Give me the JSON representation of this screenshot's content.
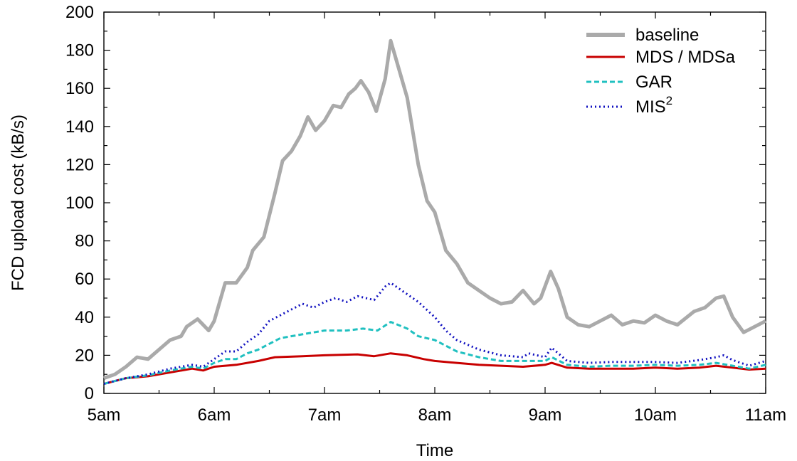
{
  "chart_data": {
    "type": "line",
    "title": "",
    "xlabel": "Time",
    "ylabel": "FCD upload cost (kB/s)",
    "xlim": [
      5,
      11
    ],
    "ylim": [
      0,
      200
    ],
    "x_ticks": [
      {
        "value": 5,
        "label": "5am"
      },
      {
        "value": 6,
        "label": "6am"
      },
      {
        "value": 7,
        "label": "7am"
      },
      {
        "value": 8,
        "label": "8am"
      },
      {
        "value": 9,
        "label": "9am"
      },
      {
        "value": 10,
        "label": "10am"
      },
      {
        "value": 11,
        "label": "11am"
      }
    ],
    "y_ticks": [
      0,
      20,
      40,
      60,
      80,
      100,
      120,
      140,
      160,
      180,
      200
    ],
    "grid": false,
    "legend": {
      "position": "top-right"
    },
    "series": [
      {
        "name": "baseline",
        "color": "#aaaaaa",
        "style": "solid",
        "points": [
          [
            5.0,
            8
          ],
          [
            5.1,
            10
          ],
          [
            5.2,
            14
          ],
          [
            5.3,
            19
          ],
          [
            5.4,
            18
          ],
          [
            5.5,
            23
          ],
          [
            5.6,
            28
          ],
          [
            5.7,
            30
          ],
          [
            5.75,
            35
          ],
          [
            5.85,
            39
          ],
          [
            5.95,
            33
          ],
          [
            6.0,
            38
          ],
          [
            6.1,
            58
          ],
          [
            6.2,
            58
          ],
          [
            6.3,
            66
          ],
          [
            6.35,
            75
          ],
          [
            6.45,
            82
          ],
          [
            6.55,
            105
          ],
          [
            6.62,
            122
          ],
          [
            6.7,
            127
          ],
          [
            6.78,
            135
          ],
          [
            6.85,
            145
          ],
          [
            6.92,
            138
          ],
          [
            7.0,
            143
          ],
          [
            7.08,
            151
          ],
          [
            7.15,
            150
          ],
          [
            7.22,
            157
          ],
          [
            7.28,
            160
          ],
          [
            7.33,
            164
          ],
          [
            7.4,
            158
          ],
          [
            7.47,
            148
          ],
          [
            7.55,
            165
          ],
          [
            7.6,
            185
          ],
          [
            7.65,
            175
          ],
          [
            7.75,
            155
          ],
          [
            7.85,
            120
          ],
          [
            7.93,
            101
          ],
          [
            8.0,
            95
          ],
          [
            8.1,
            75
          ],
          [
            8.2,
            68
          ],
          [
            8.3,
            58
          ],
          [
            8.4,
            54
          ],
          [
            8.5,
            50
          ],
          [
            8.6,
            47
          ],
          [
            8.7,
            48
          ],
          [
            8.8,
            54
          ],
          [
            8.9,
            47
          ],
          [
            8.96,
            50
          ],
          [
            9.05,
            64
          ],
          [
            9.12,
            55
          ],
          [
            9.2,
            40
          ],
          [
            9.3,
            36
          ],
          [
            9.4,
            35
          ],
          [
            9.5,
            38
          ],
          [
            9.6,
            41
          ],
          [
            9.7,
            36
          ],
          [
            9.8,
            38
          ],
          [
            9.9,
            37
          ],
          [
            10.0,
            41
          ],
          [
            10.1,
            38
          ],
          [
            10.2,
            36
          ],
          [
            10.35,
            43
          ],
          [
            10.45,
            45
          ],
          [
            10.55,
            50
          ],
          [
            10.62,
            51
          ],
          [
            10.7,
            40
          ],
          [
            10.8,
            32
          ],
          [
            10.9,
            35
          ],
          [
            11.0,
            38
          ]
        ]
      },
      {
        "name": "MDS / MDSa",
        "color": "#c80000",
        "style": "solid",
        "points": [
          [
            5.0,
            5
          ],
          [
            5.2,
            8
          ],
          [
            5.4,
            9
          ],
          [
            5.6,
            11
          ],
          [
            5.8,
            13
          ],
          [
            5.9,
            12
          ],
          [
            6.0,
            14
          ],
          [
            6.2,
            15
          ],
          [
            6.4,
            17
          ],
          [
            6.55,
            19
          ],
          [
            6.8,
            19.5
          ],
          [
            7.0,
            20
          ],
          [
            7.3,
            20.5
          ],
          [
            7.45,
            19.5
          ],
          [
            7.6,
            21
          ],
          [
            7.75,
            20
          ],
          [
            7.9,
            18
          ],
          [
            8.0,
            17
          ],
          [
            8.2,
            16
          ],
          [
            8.4,
            15
          ],
          [
            8.6,
            14.5
          ],
          [
            8.8,
            14
          ],
          [
            9.0,
            15
          ],
          [
            9.06,
            16
          ],
          [
            9.2,
            13.5
          ],
          [
            9.4,
            13
          ],
          [
            9.6,
            13
          ],
          [
            9.8,
            13
          ],
          [
            10.0,
            13.5
          ],
          [
            10.2,
            13
          ],
          [
            10.4,
            13.5
          ],
          [
            10.55,
            14.5
          ],
          [
            10.7,
            13.5
          ],
          [
            10.85,
            12.5
          ],
          [
            11.0,
            13
          ]
        ]
      },
      {
        "name": "GAR",
        "color": "#20c0c0",
        "style": "dashed",
        "points": [
          [
            5.0,
            5
          ],
          [
            5.2,
            8
          ],
          [
            5.4,
            9.5
          ],
          [
            5.6,
            12
          ],
          [
            5.8,
            14
          ],
          [
            5.9,
            13
          ],
          [
            6.0,
            16
          ],
          [
            6.1,
            18
          ],
          [
            6.2,
            18
          ],
          [
            6.3,
            21
          ],
          [
            6.4,
            23
          ],
          [
            6.5,
            26
          ],
          [
            6.6,
            29
          ],
          [
            6.8,
            31
          ],
          [
            7.0,
            33
          ],
          [
            7.2,
            33
          ],
          [
            7.35,
            34
          ],
          [
            7.48,
            33
          ],
          [
            7.6,
            37.5
          ],
          [
            7.75,
            34
          ],
          [
            7.85,
            30
          ],
          [
            8.0,
            28
          ],
          [
            8.1,
            25
          ],
          [
            8.2,
            22
          ],
          [
            8.4,
            19
          ],
          [
            8.6,
            17
          ],
          [
            8.8,
            17
          ],
          [
            9.0,
            17
          ],
          [
            9.06,
            19
          ],
          [
            9.2,
            15
          ],
          [
            9.4,
            14
          ],
          [
            9.6,
            14.5
          ],
          [
            9.8,
            14.5
          ],
          [
            10.0,
            15
          ],
          [
            10.2,
            14.5
          ],
          [
            10.4,
            15
          ],
          [
            10.55,
            16
          ],
          [
            10.7,
            14.5
          ],
          [
            10.85,
            13
          ],
          [
            11.0,
            15
          ]
        ]
      },
      {
        "name": "MIS^2",
        "color": "#1010c0",
        "style": "dotted",
        "points": [
          [
            5.0,
            5
          ],
          [
            5.2,
            8
          ],
          [
            5.4,
            10
          ],
          [
            5.6,
            13
          ],
          [
            5.8,
            15
          ],
          [
            5.9,
            14
          ],
          [
            6.0,
            18
          ],
          [
            6.1,
            22
          ],
          [
            6.2,
            22
          ],
          [
            6.3,
            27
          ],
          [
            6.4,
            31
          ],
          [
            6.5,
            38
          ],
          [
            6.6,
            41
          ],
          [
            6.8,
            47
          ],
          [
            6.9,
            45
          ],
          [
            7.0,
            48
          ],
          [
            7.1,
            50
          ],
          [
            7.2,
            48
          ],
          [
            7.3,
            51
          ],
          [
            7.45,
            49
          ],
          [
            7.55,
            56
          ],
          [
            7.6,
            58
          ],
          [
            7.7,
            54
          ],
          [
            7.85,
            48
          ],
          [
            8.0,
            40
          ],
          [
            8.1,
            33
          ],
          [
            8.2,
            28
          ],
          [
            8.4,
            23
          ],
          [
            8.6,
            20
          ],
          [
            8.8,
            19
          ],
          [
            8.85,
            21
          ],
          [
            9.0,
            19
          ],
          [
            9.06,
            24
          ],
          [
            9.2,
            17
          ],
          [
            9.4,
            16
          ],
          [
            9.6,
            16.5
          ],
          [
            9.8,
            16.5
          ],
          [
            10.0,
            16.5
          ],
          [
            10.2,
            16
          ],
          [
            10.4,
            17.5
          ],
          [
            10.55,
            19
          ],
          [
            10.62,
            20
          ],
          [
            10.7,
            17.5
          ],
          [
            10.85,
            14.5
          ],
          [
            11.0,
            17
          ]
        ]
      }
    ]
  },
  "legend_items": [
    {
      "label": "baseline"
    },
    {
      "label": "MDS / MDSa"
    },
    {
      "label": "GAR"
    },
    {
      "label": "MIS",
      "superscript": "2"
    }
  ]
}
